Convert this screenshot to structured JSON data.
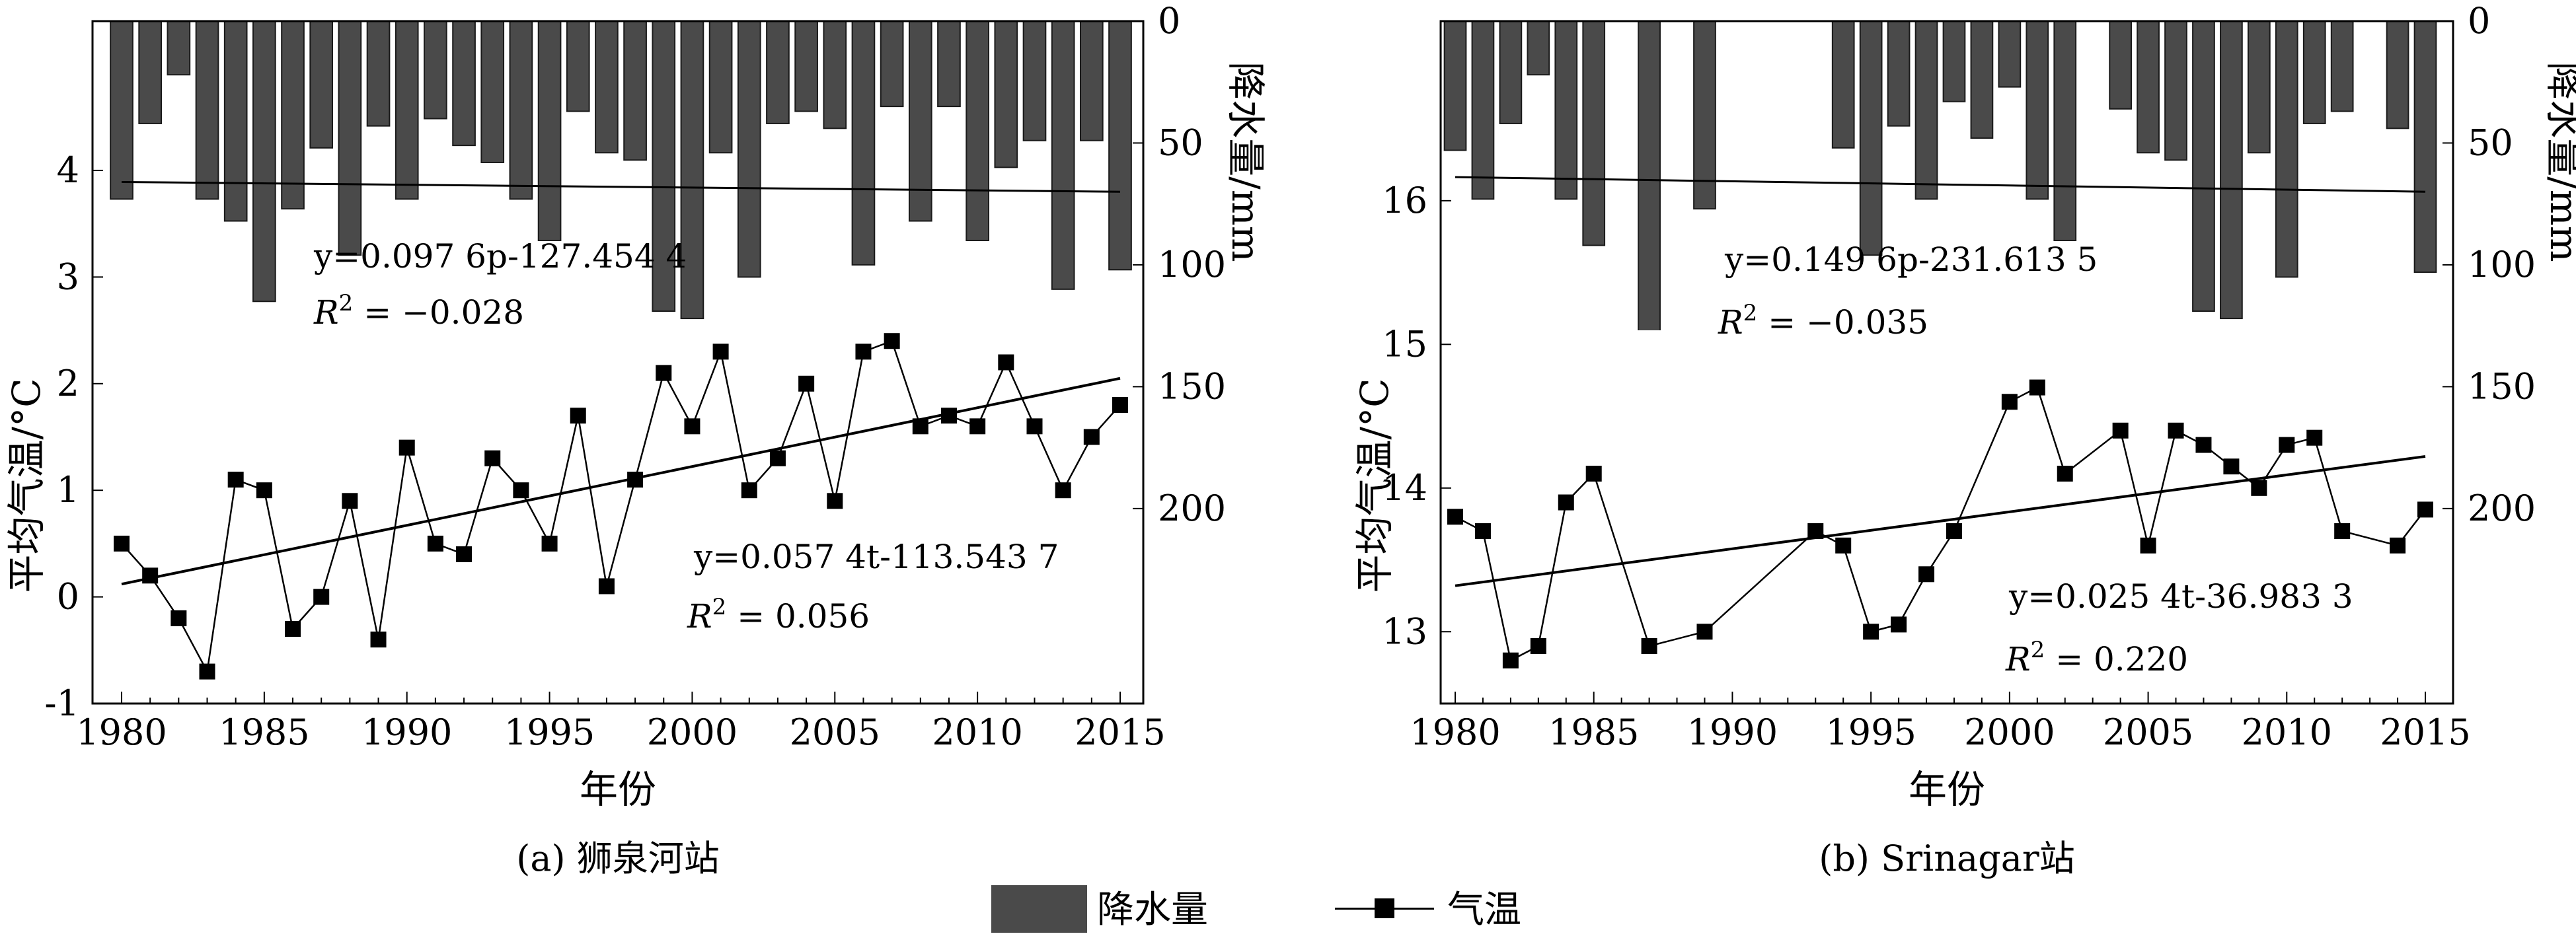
{
  "legend": {
    "precip_label": "降水量",
    "temp_label": "气温"
  },
  "chart_data": [
    {
      "type": "bar+line",
      "caption": "(a) 狮泉河站",
      "xlabel": "年份",
      "ylabel_left": "平均气温/°C",
      "ylabel_right": "降水量/mm",
      "x_range": [
        1980,
        2015
      ],
      "x_ticks": [
        1980,
        1985,
        1990,
        1995,
        2000,
        2005,
        2010,
        2015
      ],
      "y_left_range": [
        -1,
        5.4
      ],
      "y_left_ticks": [
        -1,
        0,
        1,
        2,
        3,
        4
      ],
      "y_right_range": [
        0,
        280
      ],
      "y_right_ticks": [
        0,
        50,
        100,
        150,
        200
      ],
      "precip_years": [
        1980,
        1981,
        1982,
        1983,
        1984,
        1985,
        1986,
        1987,
        1988,
        1989,
        1990,
        1991,
        1992,
        1993,
        1994,
        1995,
        1996,
        1997,
        1998,
        1999,
        2000,
        2001,
        2002,
        2003,
        2004,
        2005,
        2006,
        2007,
        2008,
        2009,
        2010,
        2011,
        2012,
        2013,
        2014,
        2015
      ],
      "precip_values": [
        73,
        42,
        22,
        73,
        82,
        115,
        77,
        52,
        96,
        43,
        73,
        40,
        51,
        58,
        73,
        90,
        37,
        54,
        57,
        119,
        122,
        54,
        105,
        42,
        37,
        44,
        100,
        35,
        82,
        35,
        90,
        60,
        49,
        110,
        49,
        102
      ],
      "precip_trend": {
        "x": [
          1980,
          2015
        ],
        "y": [
          66,
          70
        ],
        "equation": "y=0.097 6p-127.454 4",
        "r2_prefix": "R",
        "r2_value": " = −0.028"
      },
      "temp_years": [
        1980,
        1981,
        1982,
        1983,
        1984,
        1985,
        1986,
        1987,
        1988,
        1989,
        1990,
        1991,
        1992,
        1993,
        1994,
        1995,
        1996,
        1997,
        1998,
        1999,
        2000,
        2001,
        2002,
        2003,
        2004,
        2005,
        2006,
        2007,
        2008,
        2009,
        2010,
        2011,
        2012,
        2013,
        2014,
        2015
      ],
      "temp_values": [
        0.5,
        0.2,
        -0.2,
        -0.7,
        1.1,
        1.0,
        -0.3,
        0.0,
        0.9,
        -0.4,
        1.4,
        0.5,
        0.4,
        1.3,
        1.0,
        0.5,
        1.7,
        0.1,
        1.1,
        2.1,
        1.6,
        2.3,
        1.0,
        1.3,
        2.0,
        0.9,
        2.3,
        2.4,
        1.6,
        1.7,
        1.6,
        2.2,
        1.6,
        1.0,
        1.5,
        1.8
      ],
      "temp_trend": {
        "x": [
          1980,
          2015
        ],
        "y": [
          0.12,
          2.05
        ],
        "equation": "y=0.057 4t-113.543 7",
        "r2_prefix": "R",
        "r2_value": " = 0.056"
      }
    },
    {
      "type": "bar+line",
      "caption": "(b) Srinagar站",
      "xlabel": "年份",
      "ylabel_left": "平均气温/°C",
      "ylabel_right": "降水量/mm",
      "x_range": [
        1980,
        2015
      ],
      "x_ticks": [
        1980,
        1985,
        1990,
        1995,
        2000,
        2005,
        2010,
        2015
      ],
      "y_left_range": [
        12.5,
        17.25
      ],
      "y_left_ticks": [
        13,
        14,
        15,
        16
      ],
      "y_right_range": [
        0,
        280
      ],
      "y_right_ticks": [
        0,
        50,
        100,
        150,
        200
      ],
      "precip_years": [
        1980,
        1981,
        1982,
        1983,
        1984,
        1985,
        1986,
        1987,
        1988,
        1989,
        1990,
        1991,
        1992,
        1993,
        1994,
        1995,
        1996,
        1997,
        1998,
        1999,
        2000,
        2001,
        2002,
        2003,
        2004,
        2005,
        2006,
        2007,
        2008,
        2009,
        2010,
        2011,
        2012,
        2013,
        2014,
        2015
      ],
      "precip_values": [
        53,
        73,
        42,
        22,
        73,
        92,
        0,
        136,
        0,
        77,
        0,
        0,
        0,
        0,
        52,
        96,
        43,
        73,
        33,
        48,
        27,
        73,
        90,
        0,
        36,
        54,
        57,
        119,
        122,
        54,
        105,
        42,
        37,
        0,
        44,
        103
      ],
      "precip_trend": {
        "x": [
          1980,
          2015
        ],
        "y": [
          64,
          70
        ],
        "equation": "y=0.149 6p-231.613 5",
        "r2_prefix": "R",
        "r2_value": " = −0.035"
      },
      "temp_years": [
        1980,
        1981,
        1982,
        1983,
        1984,
        1985,
        1987,
        1989,
        1993,
        1994,
        1995,
        1996,
        1997,
        1998,
        2000,
        2001,
        2002,
        2004,
        2005,
        2006,
        2007,
        2008,
        2009,
        2010,
        2011,
        2012,
        2014,
        2015
      ],
      "temp_values": [
        13.8,
        13.7,
        12.8,
        12.9,
        13.9,
        14.1,
        12.9,
        13.0,
        13.7,
        13.6,
        13.0,
        13.05,
        13.4,
        13.7,
        14.6,
        14.7,
        14.1,
        14.4,
        13.6,
        14.4,
        14.3,
        14.15,
        14.0,
        14.3,
        14.35,
        13.7,
        13.6,
        13.85
      ],
      "temp_trend": {
        "x": [
          1980,
          2015
        ],
        "y": [
          13.32,
          14.22
        ],
        "equation": "y=0.025 4t-36.983 3",
        "r2_prefix": "R",
        "r2_value": " = 0.220"
      }
    }
  ]
}
